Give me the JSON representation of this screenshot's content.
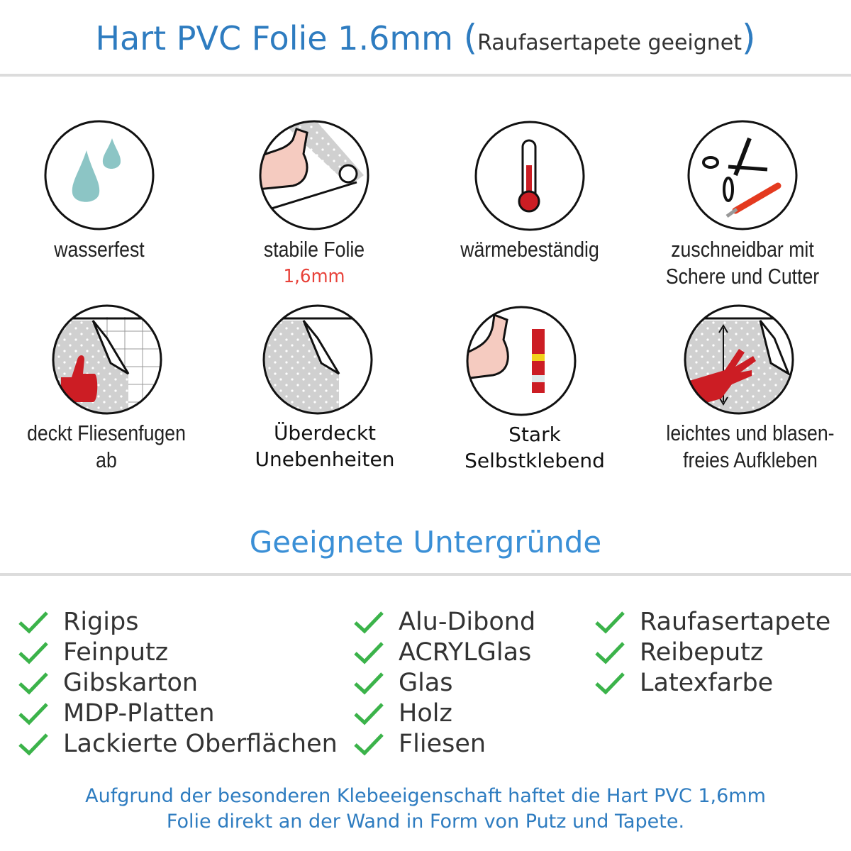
{
  "header": {
    "title": "Hart PVC Folie 1.6mm",
    "subtitle": "Raufasertapete geeignet",
    "open_paren": "(",
    "close_paren": ")",
    "color": "#2e7cc0"
  },
  "features": [
    {
      "label": "wasserfest",
      "icon": "water-drops-icon"
    },
    {
      "label": "stabile Folie",
      "sublabel": "1,6mm",
      "icon": "strong-arm-roll-icon"
    },
    {
      "label": "wärmebeständig",
      "icon": "thermometer-icon"
    },
    {
      "label": "zuschneidbar mit",
      "label2": "Schere und Cutter",
      "icon": "scissors-cutter-icon"
    },
    {
      "label": "deckt Fliesenfugen ab",
      "icon": "thumbs-up-tiles-icon"
    },
    {
      "label": "Überdeckt",
      "label2": "Unebenheiten",
      "icon": "foil-corner-icon"
    },
    {
      "label": "Stark",
      "label2": "Selbstklebend",
      "icon": "arm-glue-icon"
    },
    {
      "label": "leichtes und blasen-",
      "label2": "freies Aufkleben",
      "icon": "hand-smooth-icon"
    }
  ],
  "surfaces": {
    "title": "Geeignete Untergründe",
    "col1": [
      "Rigips",
      "Feinputz",
      "Gibskarton",
      "MDP-Platten",
      "Lackierte Oberflächen"
    ],
    "col2": [
      "Alu-Dibond",
      "ACRYLGlas",
      "Glas",
      "Holz",
      "Fliesen"
    ],
    "col3": [
      "Raufasertapete",
      "Reibeputz",
      "Latexfarbe"
    ],
    "check_color": "#3bb34a"
  },
  "footer": {
    "line1": "Aufgrund der besonderen Klebeeigenschaft haftet die Hart PVC 1,6mm",
    "line2": "Folie direkt an der Wand in Form von Putz und Tapete."
  }
}
